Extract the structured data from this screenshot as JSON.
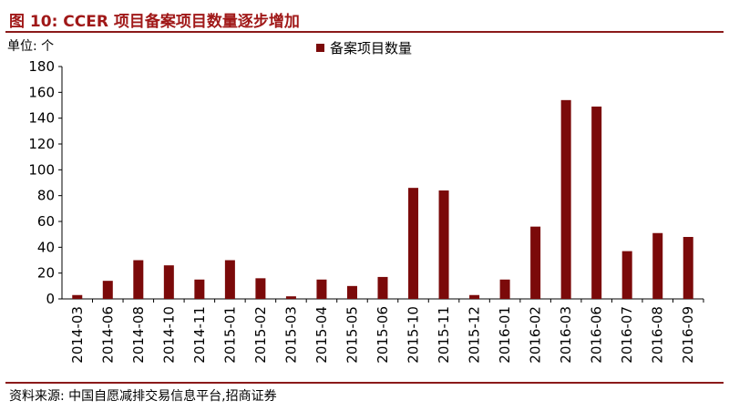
{
  "title": "图 10:  CCER 项目备案项目数量逐步增加",
  "unit_label": "单位:  个",
  "source": "资料来源:  中国自愿减排交易信息平台,招商证券",
  "colors": {
    "bar": "#7b0a0a",
    "title": "#a01818",
    "rule": "#8b1a1a"
  },
  "chart_data": {
    "type": "bar",
    "categories": [
      "2014-03",
      "2014-06",
      "2014-08",
      "2014-10",
      "2014-11",
      "2015-01",
      "2015-02",
      "2015-03",
      "2015-04",
      "2015-05",
      "2015-06",
      "2015-10",
      "2015-11",
      "2015-12",
      "2016-01",
      "2016-02",
      "2016-03",
      "2016-06",
      "2016-07",
      "2016-08",
      "2016-09"
    ],
    "series": [
      {
        "name": "备案项目数量",
        "values": [
          3,
          14,
          30,
          26,
          15,
          30,
          16,
          2,
          15,
          10,
          17,
          86,
          84,
          3,
          15,
          56,
          154,
          149,
          37,
          51,
          48
        ]
      }
    ],
    "yticks": [
      0,
      20,
      40,
      60,
      80,
      100,
      120,
      140,
      160,
      180
    ],
    "ylim": [
      0,
      180
    ],
    "legend_position": "top-center",
    "grid": false
  }
}
